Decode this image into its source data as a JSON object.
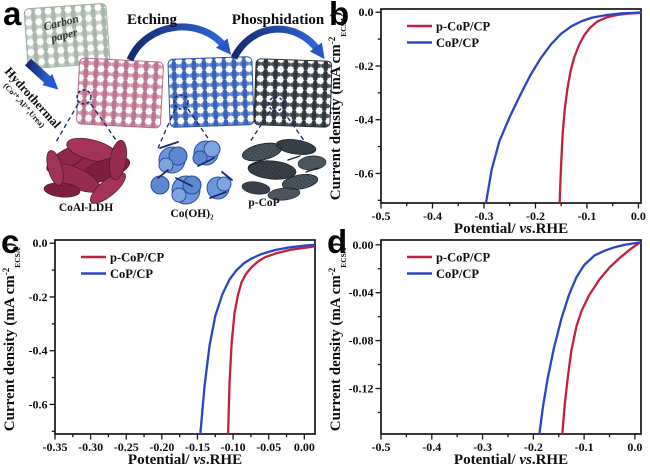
{
  "figure": {
    "background": "#ffffff",
    "panel_labels": {
      "a": "a",
      "b": "b",
      "c": "c",
      "d": "d"
    }
  },
  "panel_a": {
    "carbon_paper_label": "Carbon paper",
    "hydrothermal_label": "Hydrothermal",
    "hydrothermal_sub": "(Co²⁺,Al³⁺,Urea)",
    "etching_label": "Etching",
    "phosphidation_label": "Phosphidation",
    "product_labels": {
      "ldh": "CoAl-LDH",
      "hydroxide": "Co(OH)₂",
      "phosphide": "p-CoP"
    },
    "colors": {
      "carbon_mesh": "#c5cfc7",
      "ldh_mesh": "#d795ab",
      "hydroxide_mesh": "#5d87d2",
      "phosphide_mesh": "#4b555c",
      "arrow_blue": "#2457c9",
      "ldh_flakes": "#8d2749",
      "hydroxide_flowers": "#6d97da",
      "phosphide_particles": "#49525a"
    }
  },
  "chart_data": [
    {
      "type": "line",
      "panel": "b",
      "title": "",
      "xlabel": "Potential/ vs.RHE",
      "ylabel": "Current density (mA cm⁻² ECSA)",
      "xlabel_parts": {
        "pre": "Potential/ ",
        "italic": "vs",
        "post": ".RHE"
      },
      "ylabel_parts": {
        "main": "Current density (mA cm",
        "sup": "-2",
        "sub": "ECSA",
        "close": ")"
      },
      "xlim": [
        -0.5,
        0.005
      ],
      "ylim": [
        -0.71,
        0.012
      ],
      "xticks": {
        "values": [
          -0.5,
          -0.4,
          -0.3,
          -0.2,
          -0.1,
          0.0
        ],
        "labels": [
          "-0.5",
          "-0.4",
          "-0.3",
          "-0.2",
          "-0.1",
          "0.0"
        ]
      },
      "yticks": {
        "values": [
          0.0,
          -0.2,
          -0.4,
          -0.6
        ],
        "labels": [
          "0.0",
          "-0.2",
          "-0.4",
          "-0.6"
        ]
      },
      "xminor": 0.05,
      "yminor": 0.1,
      "grid": false,
      "legend_position": "top-left",
      "series": [
        {
          "name": "p-CoP/CP",
          "color": "#c2203f",
          "x": [
            0.005,
            -0.02,
            -0.04,
            -0.06,
            -0.08,
            -0.095,
            -0.105,
            -0.115,
            -0.125,
            -0.132,
            -0.138,
            -0.143,
            -0.147,
            -0.15,
            -0.152,
            -0.153
          ],
          "y": [
            -0.002,
            -0.005,
            -0.01,
            -0.018,
            -0.035,
            -0.06,
            -0.085,
            -0.12,
            -0.17,
            -0.22,
            -0.285,
            -0.36,
            -0.45,
            -0.56,
            -0.65,
            -0.71
          ]
        },
        {
          "name": "CoP/CP",
          "color": "#2b46c0",
          "x": [
            0.005,
            -0.03,
            -0.06,
            -0.09,
            -0.11,
            -0.13,
            -0.15,
            -0.17,
            -0.19,
            -0.21,
            -0.23,
            -0.25,
            -0.27,
            -0.285,
            -0.296
          ],
          "y": [
            -0.001,
            -0.004,
            -0.01,
            -0.02,
            -0.033,
            -0.052,
            -0.08,
            -0.12,
            -0.172,
            -0.235,
            -0.31,
            -0.39,
            -0.48,
            -0.585,
            -0.71
          ]
        }
      ]
    },
    {
      "type": "line",
      "panel": "c",
      "title": "",
      "xlabel": "Potential/ vs.RHE",
      "ylabel": "Current density (mA cm⁻² ECSA)",
      "xlabel_parts": {
        "pre": "Potential/ ",
        "italic": "vs",
        "post": ".RHE"
      },
      "ylabel_parts": {
        "main": "Current density (mA cm",
        "sup": "-2",
        "sub": "ECSA",
        "close": ")"
      },
      "xlim": [
        -0.35,
        0.015
      ],
      "ylim": [
        -0.71,
        0.012
      ],
      "xticks": {
        "values": [
          -0.35,
          -0.3,
          -0.25,
          -0.2,
          -0.15,
          -0.1,
          -0.05,
          0.0
        ],
        "labels": [
          "-0.35",
          "-0.30",
          "-0.25",
          "-0.20",
          "-0.15",
          "-0.10",
          "-0.05",
          "0.00"
        ]
      },
      "yticks": {
        "values": [
          0.0,
          -0.2,
          -0.4,
          -0.6
        ],
        "labels": [
          "0.0",
          "-0.2",
          "-0.4",
          "-0.6"
        ]
      },
      "xminor": 0.025,
      "yminor": 0.1,
      "grid": false,
      "legend_position": "top-left",
      "series": [
        {
          "name": "p-CoP/CP",
          "color": "#c2203f",
          "x": [
            0.015,
            0.0,
            -0.02,
            -0.04,
            -0.055,
            -0.065,
            -0.075,
            -0.082,
            -0.088,
            -0.093,
            -0.098,
            -0.102,
            -0.105,
            -0.107
          ],
          "y": [
            -0.012,
            -0.017,
            -0.025,
            -0.038,
            -0.052,
            -0.068,
            -0.092,
            -0.115,
            -0.145,
            -0.19,
            -0.26,
            -0.37,
            -0.52,
            -0.71
          ]
        },
        {
          "name": "CoP/CP",
          "color": "#2b46c0",
          "x": [
            0.015,
            0.0,
            -0.02,
            -0.04,
            -0.06,
            -0.075,
            -0.085,
            -0.095,
            -0.105,
            -0.115,
            -0.125,
            -0.133,
            -0.14,
            -0.146
          ],
          "y": [
            -0.006,
            -0.009,
            -0.015,
            -0.025,
            -0.04,
            -0.058,
            -0.075,
            -0.1,
            -0.135,
            -0.19,
            -0.27,
            -0.38,
            -0.53,
            -0.71
          ]
        }
      ]
    },
    {
      "type": "line",
      "panel": "d",
      "title": "",
      "xlabel": "Potential/ vs.RHE",
      "ylabel": "Current density (mA cm⁻² ECSA)",
      "xlabel_parts": {
        "pre": "Potential/ ",
        "italic": "vs",
        "post": ".RHE"
      },
      "ylabel_parts": {
        "main": "Current density (mA cm",
        "sup": "-2",
        "sub": "ECSA",
        "close": ")"
      },
      "xlim": [
        -0.5,
        0.012
      ],
      "ylim": [
        -0.158,
        0.004
      ],
      "xticks": {
        "values": [
          -0.5,
          -0.4,
          -0.3,
          -0.2,
          -0.1,
          0.0
        ],
        "labels": [
          "-0.5",
          "-0.4",
          "-0.3",
          "-0.2",
          "-0.1",
          "0.0"
        ]
      },
      "yticks": {
        "values": [
          0.0,
          -0.04,
          -0.08,
          -0.12
        ],
        "labels": [
          "0.00",
          "-0.04",
          "-0.08",
          "-0.12"
        ]
      },
      "xminor": 0.05,
      "yminor": 0.02,
      "grid": false,
      "legend_position": "top-left",
      "series": [
        {
          "name": "p-CoP/CP",
          "color": "#c2203f",
          "x": [
            0.01,
            -0.01,
            -0.03,
            -0.05,
            -0.07,
            -0.09,
            -0.105,
            -0.115,
            -0.125,
            -0.132,
            -0.138,
            -0.143
          ],
          "y": [
            0.002,
            -0.004,
            -0.011,
            -0.019,
            -0.029,
            -0.042,
            -0.055,
            -0.068,
            -0.088,
            -0.11,
            -0.133,
            -0.158
          ]
        },
        {
          "name": "CoP/CP",
          "color": "#2b46c0",
          "x": [
            0.01,
            -0.02,
            -0.04,
            -0.06,
            -0.08,
            -0.1,
            -0.115,
            -0.13,
            -0.145,
            -0.16,
            -0.172,
            -0.181,
            -0.188
          ],
          "y": [
            0.002,
            0.0,
            -0.002,
            -0.005,
            -0.009,
            -0.017,
            -0.027,
            -0.042,
            -0.062,
            -0.087,
            -0.112,
            -0.135,
            -0.158
          ]
        }
      ]
    }
  ]
}
